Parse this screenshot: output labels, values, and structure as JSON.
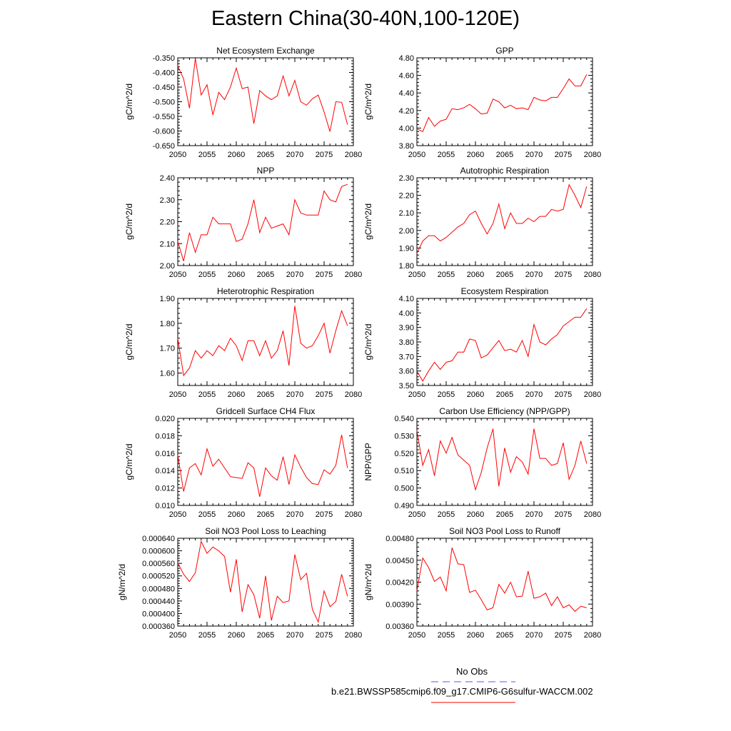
{
  "title": "Eastern China(30-40N,100-120E)",
  "colors": {
    "series": "#ff0000",
    "obs": "#5555ff",
    "axis": "#000000"
  },
  "legend": {
    "obs_label": "No Obs",
    "model_label": "b.e21.BWSSP585cmip6.f09_g17.CMIP6-G6sulfur-WACCM.002"
  },
  "chart_data": [
    {
      "type": "line",
      "title": "Net Ecosystem Exchange",
      "ylabel": "gC/m^2/d",
      "xlim": [
        2050,
        2080
      ],
      "ylim": [
        -0.65,
        -0.35
      ],
      "xticks": [
        2050,
        2055,
        2060,
        2065,
        2070,
        2075,
        2080
      ],
      "yticks": [
        "-0.650",
        "-0.600",
        "-0.550",
        "-0.500",
        "-0.450",
        "-0.400",
        "-0.350"
      ],
      "x_start": 2050,
      "values": [
        -0.378,
        -0.422,
        -0.522,
        -0.352,
        -0.477,
        -0.442,
        -0.545,
        -0.468,
        -0.493,
        -0.45,
        -0.385,
        -0.455,
        -0.45,
        -0.575,
        -0.462,
        -0.48,
        -0.493,
        -0.48,
        -0.412,
        -0.48,
        -0.427,
        -0.5,
        -0.512,
        -0.49,
        -0.477,
        -0.535,
        -0.602,
        -0.5,
        -0.502,
        -0.578
      ]
    },
    {
      "type": "line",
      "title": "GPP",
      "ylabel": "gC/m^2/d",
      "xlim": [
        2050,
        2080
      ],
      "ylim": [
        3.8,
        4.8
      ],
      "xticks": [
        2050,
        2055,
        2060,
        2065,
        2070,
        2075,
        2080
      ],
      "yticks": [
        "3.80",
        "4.00",
        "4.20",
        "4.40",
        "4.60",
        "4.80"
      ],
      "x_start": 2050,
      "values": [
        3.99,
        3.96,
        4.12,
        4.02,
        4.08,
        4.1,
        4.22,
        4.21,
        4.23,
        4.27,
        4.22,
        4.16,
        4.17,
        4.33,
        4.3,
        4.23,
        4.26,
        4.22,
        4.23,
        4.21,
        4.35,
        4.32,
        4.31,
        4.35,
        4.35,
        4.45,
        4.56,
        4.48,
        4.48,
        4.61
      ]
    },
    {
      "type": "line",
      "title": "NPP",
      "ylabel": "gC/m^2/d",
      "xlim": [
        2050,
        2080
      ],
      "ylim": [
        2.0,
        2.4
      ],
      "xticks": [
        2050,
        2055,
        2060,
        2065,
        2070,
        2075,
        2080
      ],
      "yticks": [
        "2.00",
        "2.10",
        "2.20",
        "2.30",
        "2.40"
      ],
      "x_start": 2050,
      "values": [
        2.11,
        2.02,
        2.15,
        2.06,
        2.14,
        2.14,
        2.22,
        2.19,
        2.19,
        2.19,
        2.11,
        2.12,
        2.19,
        2.3,
        2.15,
        2.22,
        2.17,
        2.18,
        2.19,
        2.14,
        2.3,
        2.24,
        2.23,
        2.23,
        2.23,
        2.34,
        2.3,
        2.29,
        2.36,
        2.37
      ]
    },
    {
      "type": "line",
      "title": "Autotrophic Respiration",
      "ylabel": "gC/m^2/d",
      "xlim": [
        2050,
        2080
      ],
      "ylim": [
        1.8,
        2.3
      ],
      "xticks": [
        2050,
        2055,
        2060,
        2065,
        2070,
        2075,
        2080
      ],
      "yticks": [
        "1.80",
        "1.90",
        "2.00",
        "2.10",
        "2.20",
        "2.30"
      ],
      "x_start": 2050,
      "values": [
        1.87,
        1.94,
        1.97,
        1.97,
        1.94,
        1.96,
        1.99,
        2.02,
        2.04,
        2.09,
        2.11,
        2.04,
        1.98,
        2.04,
        2.15,
        2.01,
        2.1,
        2.04,
        2.04,
        2.07,
        2.05,
        2.08,
        2.08,
        2.12,
        2.11,
        2.12,
        2.26,
        2.2,
        2.13,
        2.25
      ]
    },
    {
      "type": "line",
      "title": "Heterotrophic Respiration",
      "ylabel": "gC/m^2/d",
      "xlim": [
        2050,
        2080
      ],
      "ylim": [
        1.55,
        1.9
      ],
      "xticks": [
        2050,
        2055,
        2060,
        2065,
        2070,
        2075,
        2080
      ],
      "yticks": [
        "1.60",
        "1.70",
        "1.80",
        "1.90"
      ],
      "x_start": 2050,
      "values": [
        1.74,
        1.59,
        1.62,
        1.69,
        1.66,
        1.69,
        1.67,
        1.71,
        1.69,
        1.74,
        1.71,
        1.65,
        1.73,
        1.73,
        1.67,
        1.73,
        1.66,
        1.69,
        1.77,
        1.63,
        1.87,
        1.72,
        1.7,
        1.71,
        1.75,
        1.8,
        1.68,
        1.77,
        1.85,
        1.79
      ]
    },
    {
      "type": "line",
      "title": "Ecosystem Respiration",
      "ylabel": "gC/m^2/d",
      "xlim": [
        2050,
        2080
      ],
      "ylim": [
        3.5,
        4.1
      ],
      "xticks": [
        2050,
        2055,
        2060,
        2065,
        2070,
        2075,
        2080
      ],
      "yticks": [
        "3.50",
        "3.60",
        "3.70",
        "3.80",
        "3.90",
        "4.00",
        "4.10"
      ],
      "x_start": 2050,
      "values": [
        3.6,
        3.53,
        3.6,
        3.66,
        3.61,
        3.66,
        3.67,
        3.73,
        3.73,
        3.82,
        3.81,
        3.69,
        3.71,
        3.76,
        3.81,
        3.74,
        3.75,
        3.73,
        3.81,
        3.7,
        3.92,
        3.8,
        3.78,
        3.82,
        3.85,
        3.91,
        3.94,
        3.97,
        3.97,
        4.03
      ]
    },
    {
      "type": "line",
      "title": "Gridcell Surface CH4 Flux",
      "ylabel": "gC/m^2/d",
      "xlim": [
        2050,
        2080
      ],
      "ylim": [
        0.01,
        0.02
      ],
      "xticks": [
        2050,
        2055,
        2060,
        2065,
        2070,
        2075,
        2080
      ],
      "yticks": [
        "0.010",
        "0.012",
        "0.014",
        "0.016",
        "0.018",
        "0.020"
      ],
      "x_start": 2050,
      "values": [
        0.0158,
        0.0116,
        0.0143,
        0.0148,
        0.0135,
        0.0165,
        0.0145,
        0.0153,
        0.0143,
        0.0133,
        0.0132,
        0.0131,
        0.0149,
        0.0143,
        0.011,
        0.0143,
        0.0134,
        0.0129,
        0.0156,
        0.0124,
        0.0158,
        0.0144,
        0.0132,
        0.0125,
        0.0124,
        0.0141,
        0.0136,
        0.0146,
        0.0181,
        0.0143
      ]
    },
    {
      "type": "line",
      "title": "Carbon Use Efficiency (NPP/GPP)",
      "ylabel": "NPP/GPP",
      "xlim": [
        2050,
        2080
      ],
      "ylim": [
        0.49,
        0.54
      ],
      "xticks": [
        2050,
        2055,
        2060,
        2065,
        2070,
        2075,
        2080
      ],
      "yticks": [
        "0.490",
        "0.500",
        "0.510",
        "0.520",
        "0.530",
        "0.540"
      ],
      "x_start": 2050,
      "values": [
        0.533,
        0.513,
        0.522,
        0.507,
        0.527,
        0.52,
        0.529,
        0.519,
        0.516,
        0.513,
        0.499,
        0.509,
        0.523,
        0.534,
        0.501,
        0.523,
        0.509,
        0.518,
        0.515,
        0.508,
        0.534,
        0.517,
        0.517,
        0.513,
        0.514,
        0.526,
        0.505,
        0.513,
        0.527,
        0.514
      ]
    },
    {
      "type": "line",
      "title": "Soil NO3 Pool Loss to Leaching",
      "ylabel": "gN/m^2/d",
      "xlim": [
        2050,
        2080
      ],
      "ylim": [
        0.00036,
        0.00064
      ],
      "xticks": [
        2050,
        2055,
        2060,
        2065,
        2070,
        2075,
        2080
      ],
      "yticks": [
        "0.000360",
        "0.000400",
        "0.000440",
        "0.000480",
        "0.000520",
        "0.000560",
        "0.000600",
        "0.000640"
      ],
      "x_start": 2050,
      "values": [
        0.000562,
        0.000525,
        0.000502,
        0.00053,
        0.00063,
        0.000592,
        0.000612,
        0.0006,
        0.000582,
        0.000468,
        0.000573,
        0.000405,
        0.000492,
        0.00046,
        0.000385,
        0.00052,
        0.000378,
        0.000455,
        0.000435,
        0.00044,
        0.000588,
        0.000508,
        0.000528,
        0.000413,
        0.000373,
        0.000472,
        0.000422,
        0.000438,
        0.000525,
        0.000455
      ]
    },
    {
      "type": "line",
      "title": "Soil NO3 Pool Loss to Runoff",
      "ylabel": "gN/m^2/d",
      "xlim": [
        2050,
        2080
      ],
      "ylim": [
        0.0036,
        0.0048
      ],
      "xticks": [
        2050,
        2055,
        2060,
        2065,
        2070,
        2075,
        2080
      ],
      "yticks": [
        "0.00360",
        "0.00390",
        "0.00420",
        "0.00450",
        "0.00480"
      ],
      "x_start": 2050,
      "values": [
        0.00408,
        0.00453,
        0.0044,
        0.00421,
        0.00427,
        0.00408,
        0.00467,
        0.00445,
        0.00444,
        0.00406,
        0.00409,
        0.00396,
        0.00382,
        0.00385,
        0.00417,
        0.00405,
        0.0042,
        0.004,
        0.00401,
        0.00435,
        0.00398,
        0.004,
        0.00405,
        0.00388,
        0.004,
        0.00385,
        0.00389,
        0.0038,
        0.00387,
        0.00385
      ]
    }
  ]
}
